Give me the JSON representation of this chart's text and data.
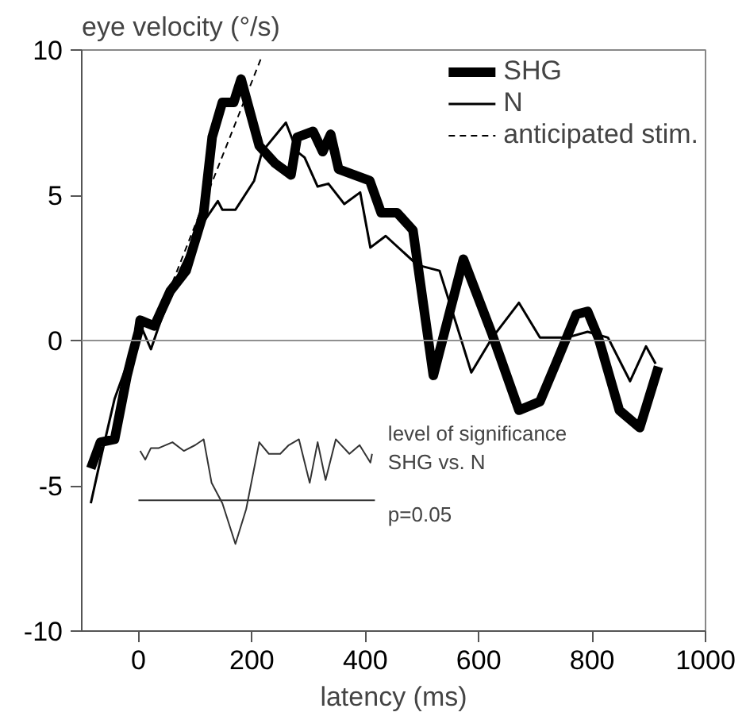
{
  "chart_data": {
    "type": "line",
    "ylabel": "eye velocity (°/s)",
    "xlabel": "latency (ms)",
    "xlim": [
      -100,
      1000
    ],
    "xticks": [
      0,
      200,
      400,
      600,
      800,
      1000
    ],
    "ylim": [
      -10,
      10
    ],
    "yticks": [
      -10,
      -5,
      0,
      5,
      10
    ],
    "grid": false,
    "legend": "top right",
    "ref_lines": [
      {
        "axis": "y",
        "value": 0,
        "color": "#909090"
      }
    ],
    "annotations": [
      "level of significance\nSHG vs. N",
      "p=0.05"
    ],
    "series": [
      {
        "name": "SHG",
        "color": "#000000",
        "line_style": "solid",
        "x": [
          -84,
          -67,
          -42,
          -20,
          -11,
          0,
          3,
          28,
          56,
          84,
          115,
          130,
          148,
          168,
          181,
          213,
          241,
          269,
          280,
          308,
          325,
          339,
          353,
          408,
          428,
          456,
          484,
          520,
          573,
          624,
          671,
          708,
          736,
          772,
          792,
          811,
          848,
          884,
          917
        ],
        "values": [
          -4.4,
          -3.5,
          -3.4,
          -1.2,
          -0.5,
          0.3,
          0.7,
          0.5,
          1.7,
          2.4,
          4.4,
          7.0,
          8.2,
          8.2,
          9.0,
          6.7,
          6.1,
          5.7,
          7.0,
          7.2,
          6.5,
          7.1,
          5.9,
          5.5,
          4.4,
          4.4,
          3.8,
          -1.2,
          2.8,
          0.2,
          -2.4,
          -2.1,
          -0.8,
          0.9,
          1.0,
          0.1,
          -2.4,
          -3.0,
          -0.9
        ]
      },
      {
        "name": "N",
        "color": "#000000",
        "line_style": "solid",
        "x": [
          -84,
          -67,
          -42,
          -14,
          0,
          22,
          36,
          73,
          112,
          140,
          148,
          171,
          204,
          218,
          260,
          280,
          293,
          316,
          335,
          363,
          391,
          409,
          436,
          492,
          531,
          568,
          587,
          624,
          671,
          708,
          755,
          792,
          828,
          867,
          895,
          912
        ],
        "values": [
          -5.6,
          -4.1,
          -2.0,
          -0.5,
          0.7,
          -0.3,
          0.5,
          2.4,
          4.0,
          4.8,
          4.5,
          4.5,
          5.5,
          6.5,
          7.5,
          6.5,
          6.3,
          5.3,
          5.4,
          4.7,
          5.1,
          3.2,
          3.6,
          2.6,
          2.4,
          0.1,
          -1.1,
          0.1,
          1.3,
          0.1,
          0.1,
          0.3,
          0.1,
          -1.4,
          -0.2,
          -0.8
        ]
      },
      {
        "name": "anticipated stim.",
        "color": "#000000",
        "line_style": "dashed",
        "x": [
          60,
          218
        ],
        "values": [
          2.0,
          9.8
        ]
      },
      {
        "color": "#333333",
        "line_style": "solid",
        "x": [
          3,
          12,
          22,
          36,
          60,
          80,
          100,
          115,
          129,
          148,
          171,
          190,
          213,
          230,
          250,
          265,
          283,
          302,
          316,
          330,
          348,
          372,
          390,
          409,
          412
        ],
        "values": [
          -3.8,
          -4.1,
          -3.7,
          -3.7,
          -3.5,
          -3.8,
          -3.6,
          -3.4,
          -4.9,
          -5.6,
          -7.0,
          -5.8,
          -3.5,
          -3.9,
          -3.9,
          -3.6,
          -3.4,
          -4.9,
          -3.5,
          -4.8,
          -3.4,
          -3.9,
          -3.6,
          -4.2,
          -3.9
        ]
      },
      {
        "color": "#333333",
        "line_style": "solid",
        "x": [
          0,
          417
        ],
        "values": [
          -5.5,
          -5.5
        ]
      }
    ]
  }
}
